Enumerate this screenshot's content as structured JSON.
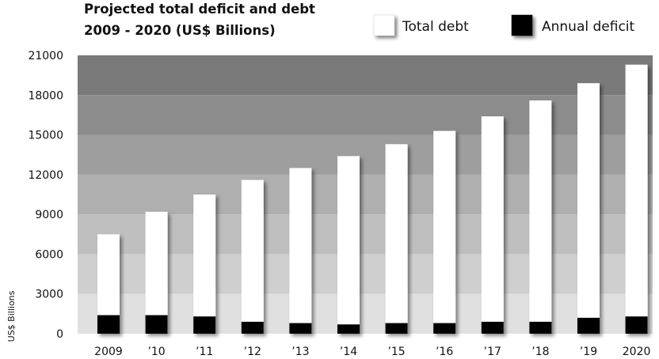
{
  "chart_data": {
    "type": "bar",
    "title_line1": "Projected total deficit and debt",
    "title_line2": "2009 - 2020 (US$ Billions)",
    "ylabel": "US$ Billions",
    "xlabel": "",
    "ylim": [
      0,
      21000
    ],
    "yticks": [
      0,
      3000,
      6000,
      9000,
      12000,
      15000,
      18000,
      21000
    ],
    "categories": [
      "2009",
      "’10",
      "’11",
      "’12",
      "’13",
      "’14",
      "’15",
      "’16",
      "’17",
      "’18",
      "’19",
      "2020"
    ],
    "legend_position": "top-right",
    "series": [
      {
        "name": "Total debt",
        "color": "#ffffff",
        "values": [
          7500,
          9200,
          10500,
          11600,
          12500,
          13400,
          14300,
          15300,
          16400,
          17600,
          18900,
          20300
        ]
      },
      {
        "name": "Annual deficit",
        "color": "#000000",
        "values": [
          1400,
          1400,
          1300,
          900,
          800,
          700,
          800,
          800,
          900,
          900,
          1200,
          1300
        ]
      }
    ]
  }
}
